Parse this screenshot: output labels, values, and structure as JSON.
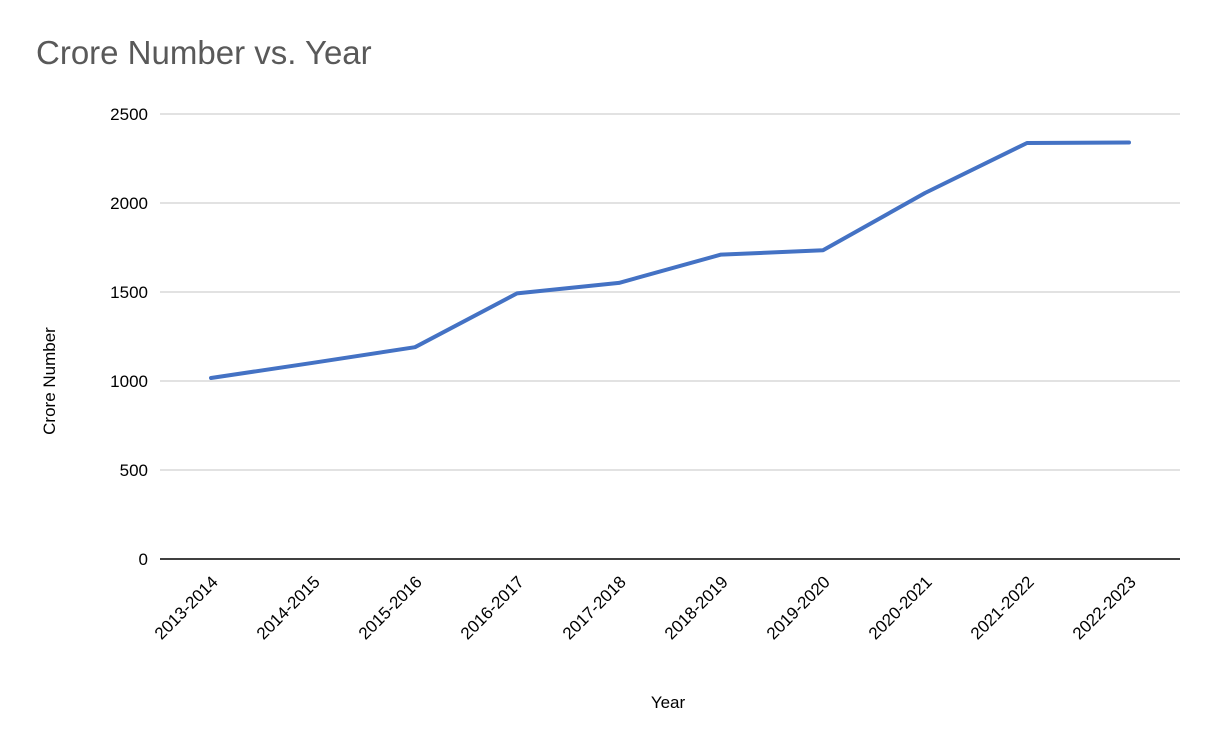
{
  "chart_data": {
    "type": "line",
    "title": "Crore Number vs. Year",
    "xlabel": "Year",
    "ylabel": "Crore Number",
    "categories": [
      "2013-2014",
      "2014-2015",
      "2015-2016",
      "2016-2017",
      "2017-2018",
      "2018-2019",
      "2019-2020",
      "2020-2021",
      "2021-2022",
      "2022-2023"
    ],
    "series": [
      {
        "values": [
          1017,
          1102,
          1190,
          1492,
          1551,
          1710,
          1734,
          2056,
          2337,
          2340
        ]
      }
    ],
    "ylim": [
      0,
      2500
    ],
    "yticks": [
      0,
      500,
      1000,
      1500,
      2000,
      2500
    ],
    "grid": true,
    "legend": "none",
    "colors": {
      "line": "#4472c4",
      "grid": "#d9d9d9",
      "axis": "#000000",
      "title": "#595959"
    }
  }
}
